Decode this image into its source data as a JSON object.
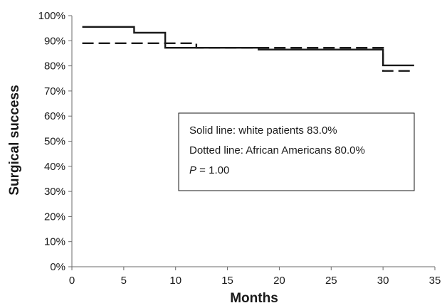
{
  "chart_data": {
    "type": "line",
    "title": "",
    "xlabel": "Months",
    "ylabel": "Surgical success",
    "xlim": [
      0,
      35
    ],
    "ylim": [
      0,
      100
    ],
    "x_ticks": [
      0,
      5,
      10,
      15,
      20,
      25,
      30,
      35
    ],
    "y_ticks": [
      0,
      10,
      20,
      30,
      40,
      50,
      60,
      70,
      80,
      90,
      100
    ],
    "y_tick_suffix": "%",
    "grid": false,
    "step": true,
    "series": [
      {
        "style": "solid",
        "color": "#1a1a1a",
        "x": [
          1,
          6,
          9,
          12,
          18,
          30,
          33
        ],
        "y": [
          95.5,
          93.2,
          87.2,
          87.2,
          86.5,
          80.2,
          80.2
        ]
      },
      {
        "style": "dashed",
        "color": "#1a1a1a",
        "x": [
          1,
          9,
          12,
          18,
          30,
          33
        ],
        "y": [
          89,
          89,
          87.2,
          87.2,
          78,
          78
        ]
      }
    ],
    "annotation": {
      "line1": "Solid line: white patients 83.0%",
      "line2": "Dotted line: African Americans 80.0%",
      "line3_italic": "P",
      "line3_rest": " = 1.00"
    }
  }
}
